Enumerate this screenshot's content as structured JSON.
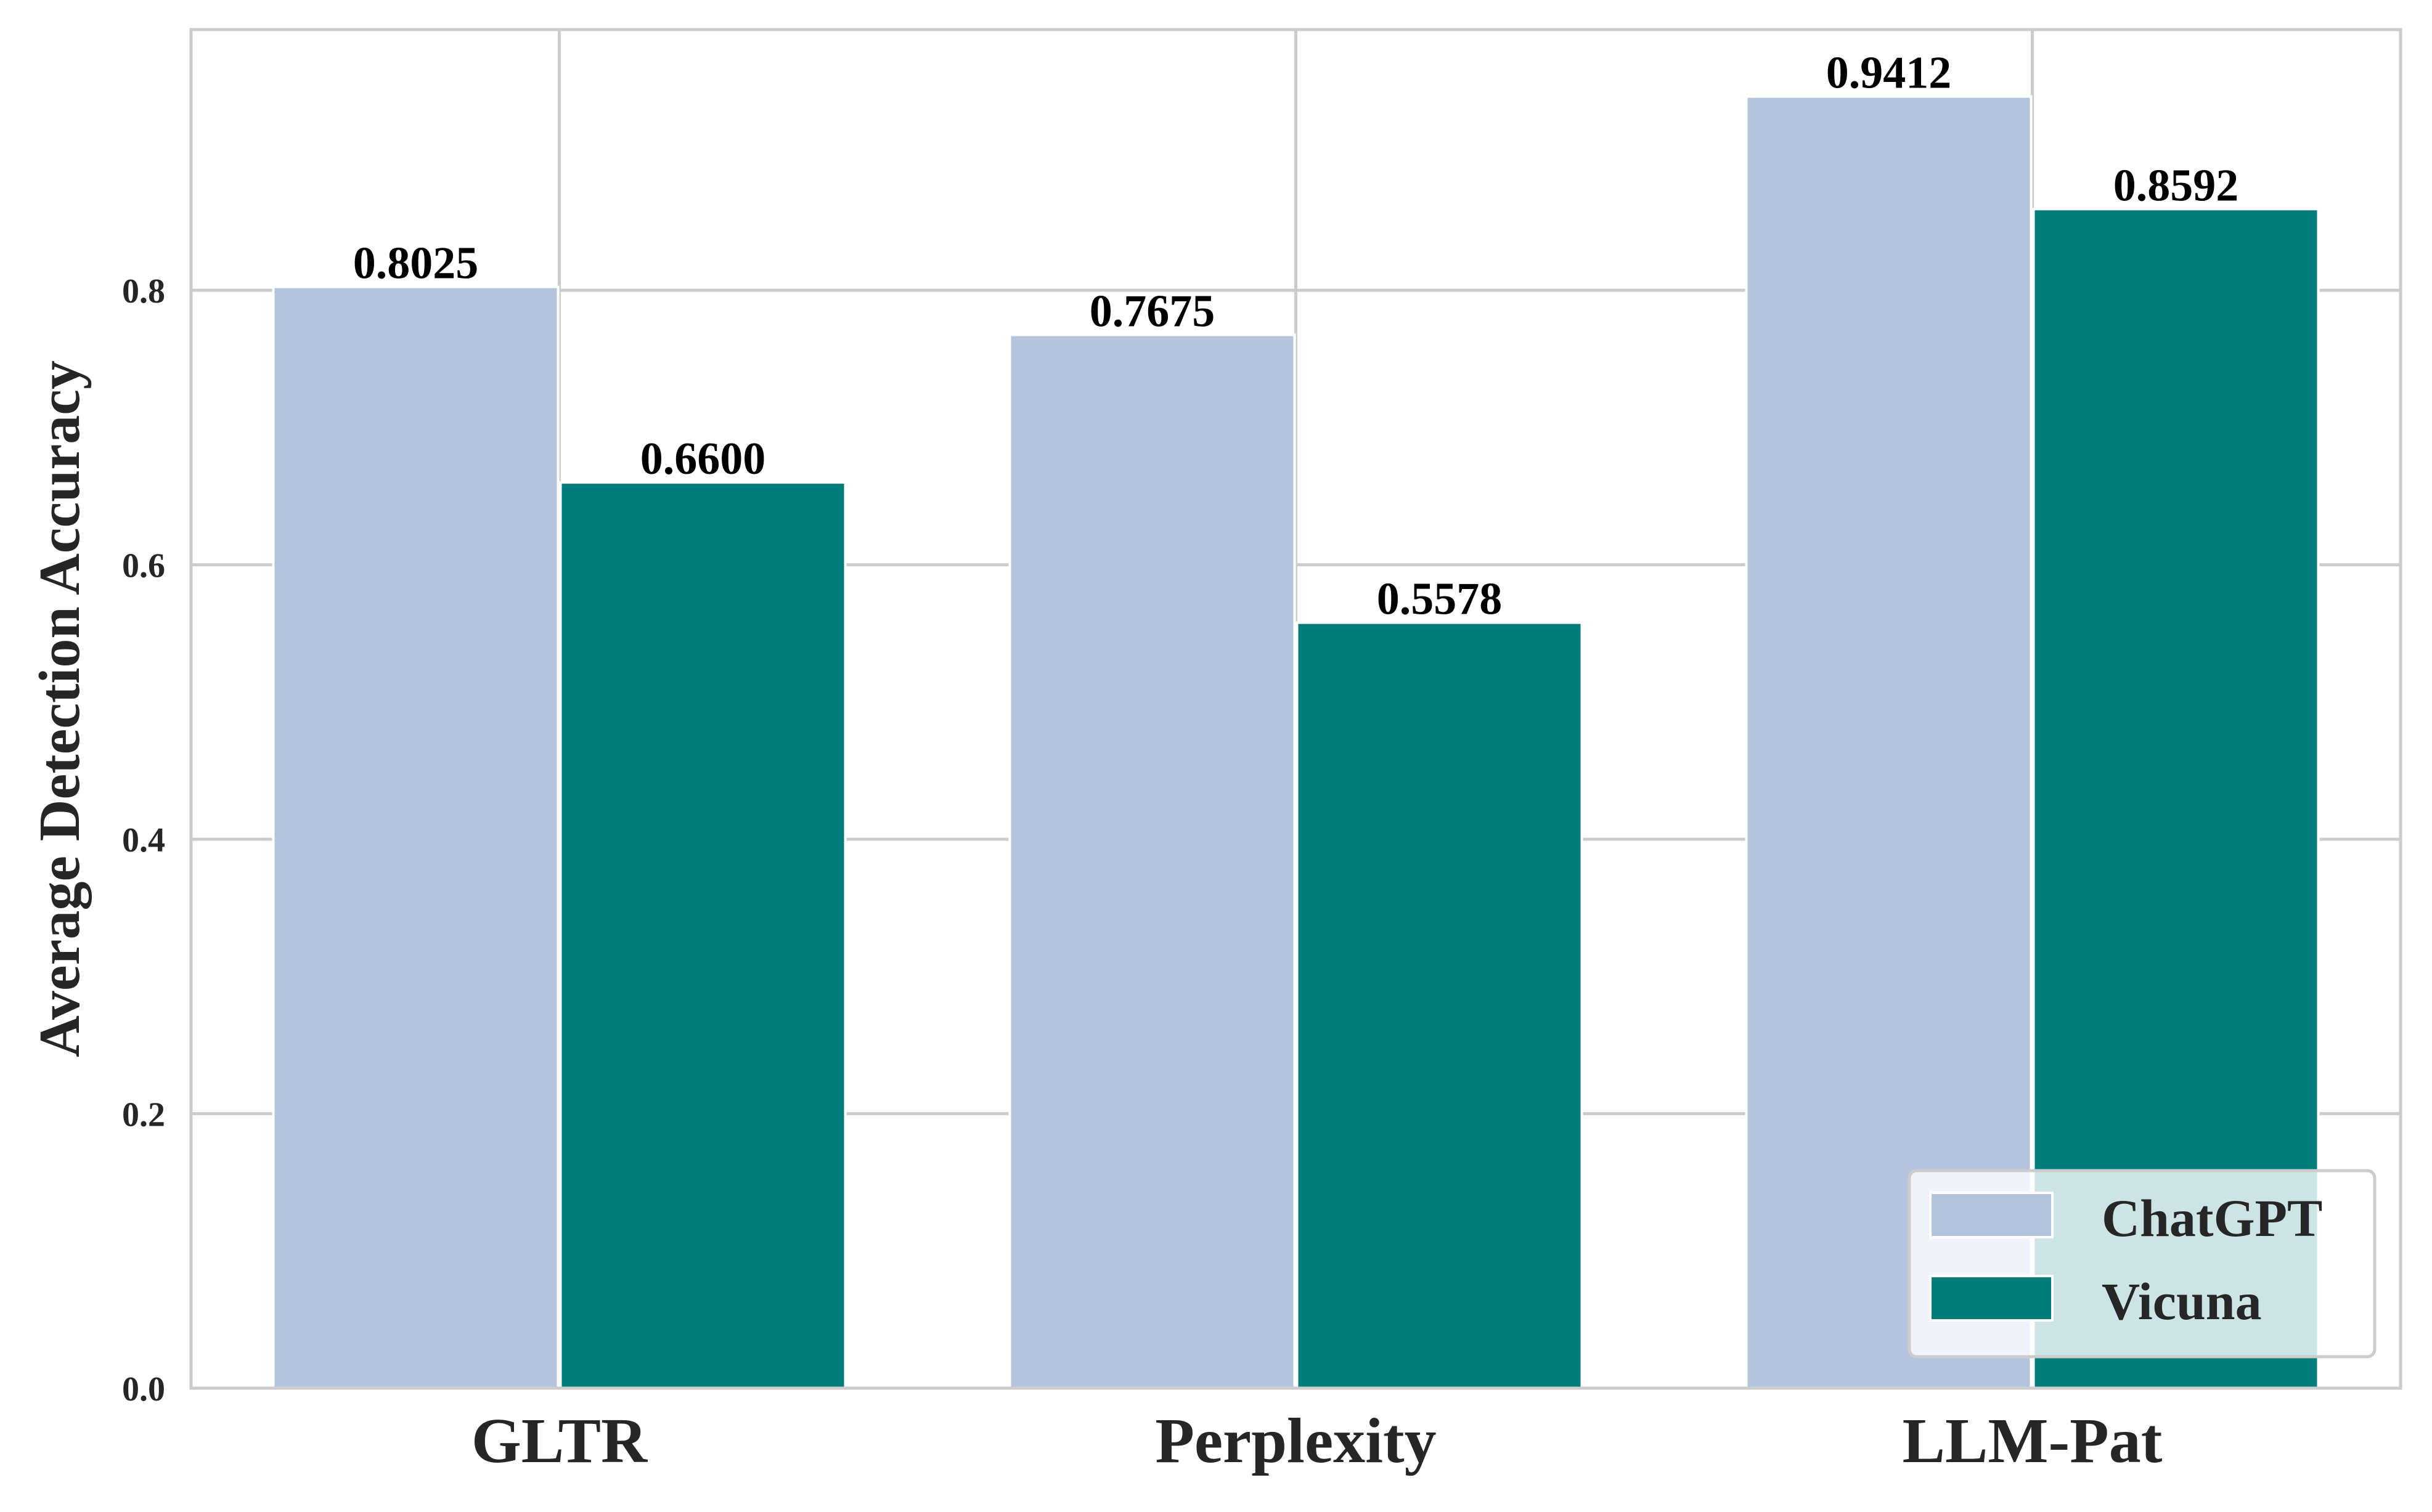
{
  "chart_data": {
    "type": "bar",
    "title": "",
    "xlabel": "",
    "ylabel": "Average Detection Accuracy",
    "categories": [
      "GLTR",
      "Perplexity",
      "LLM-Pat"
    ],
    "series": [
      {
        "name": "ChatGPT",
        "values": [
          0.8025,
          0.7675,
          0.9412
        ],
        "labels": [
          "0.8025",
          "0.7675",
          "0.9412"
        ],
        "color": "#b4c4de"
      },
      {
        "name": "Vicuna",
        "values": [
          0.66,
          0.5578,
          0.8592
        ],
        "labels": [
          "0.6600",
          "0.5578",
          "0.8592"
        ],
        "color": "#027b7b"
      }
    ],
    "ylim": [
      0,
      0.99
    ],
    "yticks": [
      0.0,
      0.2,
      0.4,
      0.6,
      0.8
    ],
    "ytick_labels": [
      "0.0",
      "0.2",
      "0.4",
      "0.6",
      "0.8"
    ],
    "grid": true,
    "legend_position": "lower-right",
    "colors": {
      "grid": "#cccccc",
      "axis": "#cccccc",
      "text": "#262626"
    }
  }
}
